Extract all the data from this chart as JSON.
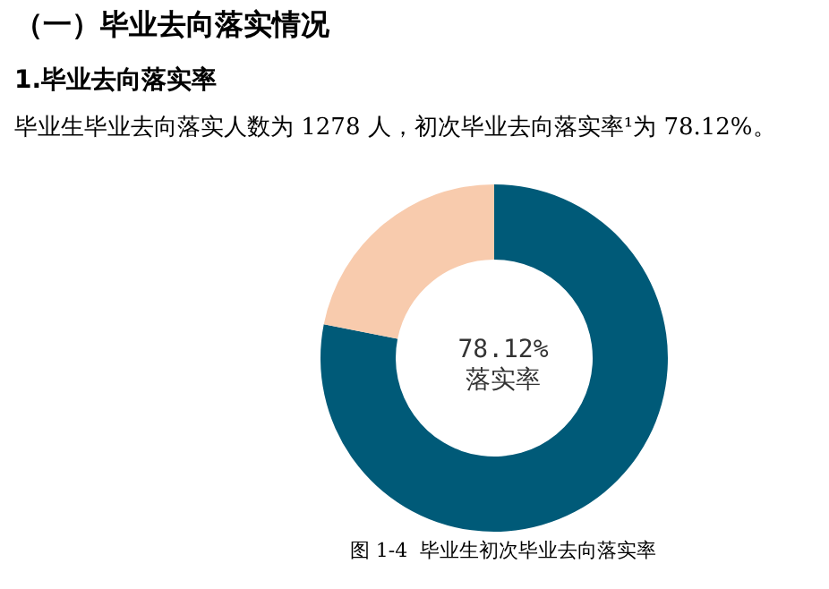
{
  "chart_data": {
    "type": "donut",
    "title": "（一）毕业去向落实情况",
    "subtitle": "1.毕业去向落实率",
    "annotations": [
      "毕业生毕业去向落实人数为 1278 人，初次毕业去向落实率¹为 78.12%。",
      "78.12%\n落实率",
      "图 1-4  毕业生初次毕业去向落实率"
    ],
    "categories": [
      null,
      null
    ],
    "values": [
      78.12,
      21.88
    ],
    "colors": [
      "#005a78",
      "#f8cbad"
    ]
  }
}
